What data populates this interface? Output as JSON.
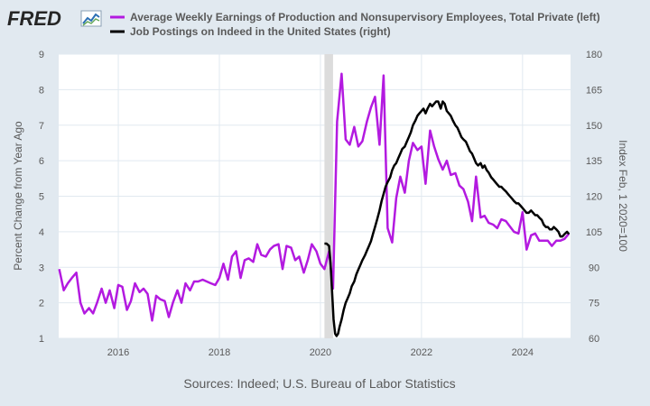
{
  "logo": {
    "text": "FRED"
  },
  "source": "Sources: Indeed; U.S. Bureau of Labor Statistics",
  "chart_data": {
    "type": "line",
    "title": "",
    "xlabel": "",
    "ylabel_left": "Percent Change from Year Ago",
    "ylabel_right": "Index Feb, 1 2020=100",
    "ylim_left": [
      1,
      9
    ],
    "ylim_right": [
      60,
      180
    ],
    "yticks_left": [
      "1",
      "2",
      "3",
      "4",
      "5",
      "6",
      "7",
      "8",
      "9"
    ],
    "yticks_right": [
      "60",
      "75",
      "90",
      "105",
      "120",
      "135",
      "150",
      "165",
      "180"
    ],
    "xlim": [
      2014.82,
      2024.95
    ],
    "xticks": [
      2016,
      2018,
      2020,
      2022,
      2024
    ],
    "xtick_labels": [
      "2016",
      "2018",
      "2020",
      "2022",
      "2024"
    ],
    "recession_shade": [
      2020.08,
      2020.25
    ],
    "grid": true,
    "legend_placement": "top",
    "series": [
      {
        "name": "Average Weekly Earnings of Production and Nonsupervisory Employees, Total Private (left)",
        "color": "#b31ae0",
        "axis": "left",
        "points": [
          [
            2014.83,
            2.95
          ],
          [
            2014.92,
            2.35
          ],
          [
            2015.0,
            2.55
          ],
          [
            2015.08,
            2.7
          ],
          [
            2015.17,
            2.85
          ],
          [
            2015.25,
            2.0
          ],
          [
            2015.33,
            1.7
          ],
          [
            2015.42,
            1.85
          ],
          [
            2015.5,
            1.7
          ],
          [
            2015.58,
            2.0
          ],
          [
            2015.67,
            2.4
          ],
          [
            2015.75,
            2.0
          ],
          [
            2015.83,
            2.35
          ],
          [
            2015.92,
            1.85
          ],
          [
            2016.0,
            2.5
          ],
          [
            2016.08,
            2.45
          ],
          [
            2016.17,
            1.8
          ],
          [
            2016.25,
            2.05
          ],
          [
            2016.33,
            2.55
          ],
          [
            2016.42,
            2.3
          ],
          [
            2016.5,
            2.4
          ],
          [
            2016.58,
            2.25
          ],
          [
            2016.67,
            1.5
          ],
          [
            2016.75,
            2.2
          ],
          [
            2016.83,
            2.1
          ],
          [
            2016.92,
            2.05
          ],
          [
            2017.0,
            1.6
          ],
          [
            2017.08,
            2.0
          ],
          [
            2017.17,
            2.35
          ],
          [
            2017.25,
            2.0
          ],
          [
            2017.33,
            2.55
          ],
          [
            2017.42,
            2.35
          ],
          [
            2017.5,
            2.6
          ],
          [
            2017.58,
            2.6
          ],
          [
            2017.67,
            2.65
          ],
          [
            2017.75,
            2.6
          ],
          [
            2017.83,
            2.55
          ],
          [
            2017.92,
            2.5
          ],
          [
            2018.0,
            2.7
          ],
          [
            2018.08,
            3.1
          ],
          [
            2018.17,
            2.65
          ],
          [
            2018.25,
            3.3
          ],
          [
            2018.33,
            3.45
          ],
          [
            2018.42,
            2.7
          ],
          [
            2018.5,
            3.2
          ],
          [
            2018.58,
            3.25
          ],
          [
            2018.67,
            3.15
          ],
          [
            2018.75,
            3.65
          ],
          [
            2018.83,
            3.35
          ],
          [
            2018.92,
            3.3
          ],
          [
            2019.0,
            3.5
          ],
          [
            2019.08,
            3.6
          ],
          [
            2019.17,
            3.65
          ],
          [
            2019.25,
            2.95
          ],
          [
            2019.33,
            3.6
          ],
          [
            2019.42,
            3.55
          ],
          [
            2019.5,
            3.2
          ],
          [
            2019.58,
            3.3
          ],
          [
            2019.67,
            2.85
          ],
          [
            2019.75,
            3.2
          ],
          [
            2019.83,
            3.65
          ],
          [
            2019.92,
            3.45
          ],
          [
            2020.0,
            3.1
          ],
          [
            2020.08,
            2.95
          ],
          [
            2020.17,
            3.45
          ],
          [
            2020.25,
            2.4
          ],
          [
            2020.33,
            7.1
          ],
          [
            2020.42,
            8.45
          ],
          [
            2020.5,
            6.6
          ],
          [
            2020.58,
            6.45
          ],
          [
            2020.67,
            6.95
          ],
          [
            2020.75,
            6.4
          ],
          [
            2020.83,
            6.55
          ],
          [
            2020.92,
            7.1
          ],
          [
            2021.0,
            7.5
          ],
          [
            2021.08,
            7.8
          ],
          [
            2021.17,
            6.45
          ],
          [
            2021.25,
            8.4
          ],
          [
            2021.33,
            4.1
          ],
          [
            2021.42,
            3.7
          ],
          [
            2021.5,
            4.95
          ],
          [
            2021.58,
            5.55
          ],
          [
            2021.67,
            5.1
          ],
          [
            2021.75,
            6.0
          ],
          [
            2021.83,
            6.5
          ],
          [
            2021.92,
            6.3
          ],
          [
            2022.0,
            6.4
          ],
          [
            2022.08,
            5.35
          ],
          [
            2022.17,
            6.85
          ],
          [
            2022.25,
            6.4
          ],
          [
            2022.33,
            6.05
          ],
          [
            2022.42,
            5.75
          ],
          [
            2022.5,
            6.0
          ],
          [
            2022.58,
            5.6
          ],
          [
            2022.67,
            5.65
          ],
          [
            2022.75,
            5.3
          ],
          [
            2022.83,
            5.2
          ],
          [
            2022.92,
            4.85
          ],
          [
            2023.0,
            4.3
          ],
          [
            2023.08,
            5.55
          ],
          [
            2023.17,
            4.4
          ],
          [
            2023.25,
            4.45
          ],
          [
            2023.33,
            4.25
          ],
          [
            2023.42,
            4.2
          ],
          [
            2023.5,
            4.1
          ],
          [
            2023.58,
            4.35
          ],
          [
            2023.67,
            4.3
          ],
          [
            2023.75,
            4.15
          ],
          [
            2023.83,
            4.0
          ],
          [
            2023.92,
            3.95
          ],
          [
            2024.0,
            4.55
          ],
          [
            2024.08,
            3.5
          ],
          [
            2024.17,
            3.9
          ],
          [
            2024.25,
            3.95
          ],
          [
            2024.33,
            3.75
          ],
          [
            2024.42,
            3.75
          ],
          [
            2024.5,
            3.75
          ],
          [
            2024.58,
            3.6
          ],
          [
            2024.67,
            3.75
          ],
          [
            2024.75,
            3.75
          ],
          [
            2024.83,
            3.8
          ],
          [
            2024.92,
            3.95
          ]
        ]
      },
      {
        "name": "Job Postings on Indeed in the United States (right)",
        "color": "#000000",
        "axis": "right",
        "points": [
          [
            2020.08,
            100
          ],
          [
            2020.12,
            100
          ],
          [
            2020.17,
            99
          ],
          [
            2020.2,
            92
          ],
          [
            2020.23,
            80
          ],
          [
            2020.26,
            68
          ],
          [
            2020.29,
            62
          ],
          [
            2020.32,
            61
          ],
          [
            2020.35,
            62
          ],
          [
            2020.38,
            65
          ],
          [
            2020.42,
            68
          ],
          [
            2020.46,
            72
          ],
          [
            2020.5,
            75
          ],
          [
            2020.54,
            77
          ],
          [
            2020.58,
            79
          ],
          [
            2020.62,
            82
          ],
          [
            2020.67,
            84
          ],
          [
            2020.71,
            87
          ],
          [
            2020.75,
            89
          ],
          [
            2020.79,
            91
          ],
          [
            2020.83,
            93
          ],
          [
            2020.88,
            95
          ],
          [
            2020.92,
            97
          ],
          [
            2020.96,
            99
          ],
          [
            2021.0,
            101
          ],
          [
            2021.04,
            104
          ],
          [
            2021.08,
            107
          ],
          [
            2021.12,
            110
          ],
          [
            2021.17,
            114
          ],
          [
            2021.21,
            118
          ],
          [
            2021.25,
            121
          ],
          [
            2021.29,
            124
          ],
          [
            2021.33,
            126
          ],
          [
            2021.38,
            128
          ],
          [
            2021.42,
            131
          ],
          [
            2021.46,
            133
          ],
          [
            2021.5,
            134
          ],
          [
            2021.54,
            136
          ],
          [
            2021.58,
            138
          ],
          [
            2021.62,
            140
          ],
          [
            2021.67,
            141
          ],
          [
            2021.71,
            143
          ],
          [
            2021.75,
            145
          ],
          [
            2021.79,
            147
          ],
          [
            2021.83,
            150
          ],
          [
            2021.88,
            152
          ],
          [
            2021.92,
            154
          ],
          [
            2021.96,
            155
          ],
          [
            2022.0,
            156
          ],
          [
            2022.04,
            157
          ],
          [
            2022.08,
            155
          ],
          [
            2022.12,
            157
          ],
          [
            2022.17,
            159
          ],
          [
            2022.21,
            158
          ],
          [
            2022.25,
            159
          ],
          [
            2022.29,
            160
          ],
          [
            2022.33,
            160
          ],
          [
            2022.38,
            157
          ],
          [
            2022.42,
            160
          ],
          [
            2022.46,
            159
          ],
          [
            2022.5,
            156
          ],
          [
            2022.54,
            155
          ],
          [
            2022.58,
            154
          ],
          [
            2022.62,
            152
          ],
          [
            2022.67,
            150
          ],
          [
            2022.71,
            149
          ],
          [
            2022.75,
            147
          ],
          [
            2022.79,
            145
          ],
          [
            2022.83,
            144
          ],
          [
            2022.88,
            143
          ],
          [
            2022.92,
            141
          ],
          [
            2022.96,
            139
          ],
          [
            2023.0,
            138
          ],
          [
            2023.04,
            136
          ],
          [
            2023.08,
            134
          ],
          [
            2023.12,
            133
          ],
          [
            2023.17,
            134
          ],
          [
            2023.21,
            132
          ],
          [
            2023.25,
            133
          ],
          [
            2023.29,
            131
          ],
          [
            2023.33,
            130
          ],
          [
            2023.38,
            128
          ],
          [
            2023.42,
            127
          ],
          [
            2023.46,
            126
          ],
          [
            2023.5,
            125
          ],
          [
            2023.54,
            124
          ],
          [
            2023.58,
            124
          ],
          [
            2023.62,
            123
          ],
          [
            2023.67,
            122
          ],
          [
            2023.71,
            121
          ],
          [
            2023.75,
            120
          ],
          [
            2023.79,
            119
          ],
          [
            2023.83,
            118
          ],
          [
            2023.88,
            117
          ],
          [
            2023.92,
            117
          ],
          [
            2023.96,
            116
          ],
          [
            2024.0,
            115
          ],
          [
            2024.04,
            114
          ],
          [
            2024.08,
            113
          ],
          [
            2024.12,
            113
          ],
          [
            2024.17,
            114
          ],
          [
            2024.21,
            113
          ],
          [
            2024.25,
            112
          ],
          [
            2024.29,
            112
          ],
          [
            2024.33,
            111
          ],
          [
            2024.38,
            110
          ],
          [
            2024.42,
            108
          ],
          [
            2024.46,
            107
          ],
          [
            2024.5,
            107
          ],
          [
            2024.54,
            106
          ],
          [
            2024.58,
            106
          ],
          [
            2024.62,
            107
          ],
          [
            2024.67,
            106
          ],
          [
            2024.71,
            105
          ],
          [
            2024.75,
            103
          ],
          [
            2024.79,
            103
          ],
          [
            2024.83,
            104
          ],
          [
            2024.88,
            105
          ],
          [
            2024.92,
            104
          ]
        ]
      }
    ]
  }
}
